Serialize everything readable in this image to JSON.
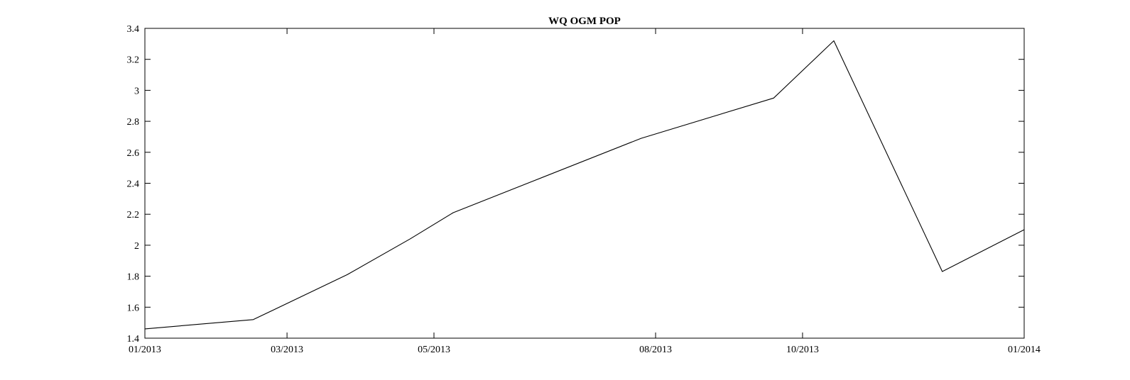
{
  "chart_data": {
    "type": "line",
    "title": "WQ OGM POP",
    "xlabel": "",
    "ylabel": "",
    "x_axis_type": "date",
    "xlim": [
      "2013-01-01",
      "2014-01-01"
    ],
    "ylim": [
      1.4,
      3.4
    ],
    "grid": false,
    "x_ticks": [
      {
        "date": "2013-01-01",
        "label": "01/2013"
      },
      {
        "date": "2013-03-01",
        "label": "03/2013"
      },
      {
        "date": "2013-05-01",
        "label": "05/2013"
      },
      {
        "date": "2013-08-01",
        "label": "08/2013"
      },
      {
        "date": "2013-10-01",
        "label": "10/2013"
      },
      {
        "date": "2014-01-01",
        "label": "01/2014"
      }
    ],
    "y_ticks": [
      {
        "value": 1.4,
        "label": "1.4"
      },
      {
        "value": 1.6,
        "label": "1.6"
      },
      {
        "value": 1.8,
        "label": "1.8"
      },
      {
        "value": 2.0,
        "label": "2"
      },
      {
        "value": 2.2,
        "label": "2.2"
      },
      {
        "value": 2.4,
        "label": "2.4"
      },
      {
        "value": 2.6,
        "label": "2.6"
      },
      {
        "value": 2.8,
        "label": "2.8"
      },
      {
        "value": 3.0,
        "label": "3"
      },
      {
        "value": 3.2,
        "label": "3.2"
      },
      {
        "value": 3.4,
        "label": "3.4"
      }
    ],
    "series": [
      {
        "x": [
          "2013-01-01",
          "2013-02-15",
          "2013-03-26",
          "2013-04-21",
          "2013-05-09",
          "2013-07-26",
          "2013-09-19",
          "2013-10-14",
          "2013-11-28",
          "2014-01-01"
        ],
        "y": [
          1.46,
          1.52,
          1.81,
          2.04,
          2.21,
          2.69,
          2.95,
          3.32,
          1.83,
          2.1
        ]
      }
    ],
    "colors": {
      "line": "#000000",
      "axes": "#000000",
      "background": "#ffffff"
    }
  }
}
